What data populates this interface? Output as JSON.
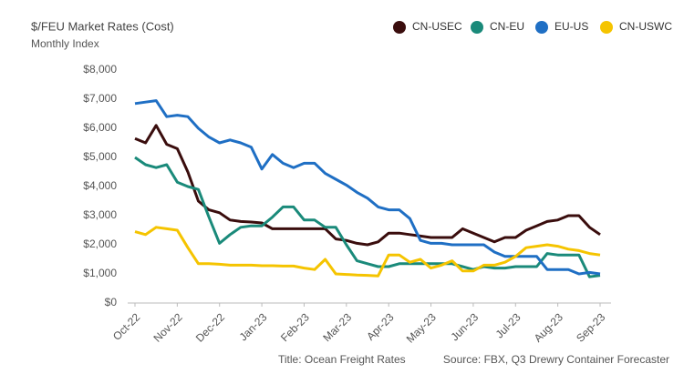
{
  "chart_data": {
    "type": "line",
    "title": "$/FEU Market Rates (Cost)",
    "subtitle": "Monthly Index",
    "caption": "Title: Ocean Freight Rates",
    "source": "Source: FBX, Q3 Drewry Container Forecaster",
    "categories": [
      "Oct-22",
      null,
      null,
      null,
      "Nov-22",
      null,
      null,
      null,
      "Dec-22",
      null,
      null,
      null,
      "Jan-23",
      null,
      null,
      null,
      "Feb-23",
      null,
      null,
      null,
      "Mar-23",
      null,
      null,
      null,
      "Apr-23",
      null,
      null,
      null,
      "May-23",
      null,
      null,
      null,
      "Jun-23",
      null,
      null,
      null,
      "Jul-23",
      null,
      null,
      null,
      "Aug-23",
      null,
      null,
      null,
      "Sep-23"
    ],
    "series": [
      {
        "name": "CN-USEC",
        "color": "#3a0d0d",
        "values": [
          5650,
          5500,
          6100,
          5450,
          5300,
          4500,
          3500,
          3200,
          3100,
          2850,
          2800,
          2780,
          2750,
          2550,
          2550,
          2550,
          2550,
          2550,
          2550,
          2200,
          2150,
          2050,
          2000,
          2100,
          2400,
          2400,
          2350,
          2300,
          2250,
          2250,
          2250,
          2550,
          2400,
          2250,
          2100,
          2250,
          2250,
          2500,
          2650,
          2800,
          2850,
          3000,
          3000,
          2600,
          2350
        ]
      },
      {
        "name": "CN-EU",
        "color": "#1a8a7a",
        "values": [
          5000,
          4750,
          4650,
          4750,
          4150,
          4000,
          3900,
          2950,
          2050,
          2350,
          2600,
          2650,
          2650,
          2950,
          3300,
          3300,
          2850,
          2850,
          2600,
          2600,
          2000,
          1450,
          1350,
          1250,
          1250,
          1350,
          1350,
          1350,
          1350,
          1350,
          1350,
          1250,
          1150,
          1250,
          1200,
          1200,
          1250,
          1250,
          1250,
          1700,
          1650,
          1650,
          1650,
          900,
          950
        ]
      },
      {
        "name": "EU-US",
        "color": "#1f6fc4",
        "values": [
          6850,
          6900,
          6950,
          6400,
          6450,
          6400,
          6000,
          5700,
          5500,
          5600,
          5500,
          5350,
          4600,
          5100,
          4800,
          4650,
          4800,
          4800,
          4450,
          4250,
          4050,
          3800,
          3600,
          3300,
          3200,
          3200,
          2900,
          2150,
          2050,
          2050,
          2000,
          2000,
          2000,
          2000,
          1750,
          1600,
          1600,
          1600,
          1600,
          1150,
          1150,
          1150,
          1000,
          1050,
          1000
        ]
      },
      {
        "name": "CN-USWC",
        "color": "#f5c400",
        "values": [
          2450,
          2350,
          2600,
          2550,
          2500,
          1900,
          1350,
          1350,
          1330,
          1300,
          1300,
          1300,
          1280,
          1280,
          1270,
          1270,
          1200,
          1150,
          1500,
          1000,
          980,
          960,
          950,
          930,
          1650,
          1650,
          1400,
          1500,
          1200,
          1300,
          1450,
          1100,
          1100,
          1300,
          1300,
          1400,
          1600,
          1900,
          1950,
          2000,
          1950,
          1850,
          1800,
          1700,
          1650
        ]
      }
    ],
    "ylim": [
      0,
      8000
    ],
    "yticks": [
      {
        "value": 0,
        "label": "$0"
      },
      {
        "value": 1000,
        "label": "$1,000"
      },
      {
        "value": 2000,
        "label": "$2,000"
      },
      {
        "value": 3000,
        "label": "$3,000"
      },
      {
        "value": 4000,
        "label": "$4,000"
      },
      {
        "value": 5000,
        "label": "$5,000"
      },
      {
        "value": 6000,
        "label": "$6,000"
      },
      {
        "value": 7000,
        "label": "$7,000"
      },
      {
        "value": 8000,
        "label": "$8,000"
      }
    ],
    "grid": false,
    "legend": "top-right"
  }
}
